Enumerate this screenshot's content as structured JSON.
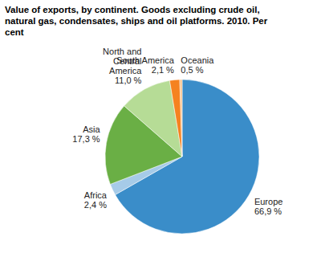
{
  "chart_data": {
    "type": "pie",
    "title": "Value of exports, by continent. Goods excluding crude oil, natural gas, condensates, ships and oil platforms. 2010. Per cent",
    "categories": [
      "Europe",
      "Africa",
      "Asia",
      "North and Central America",
      "South America",
      "Oceania"
    ],
    "values": [
      66.9,
      2.4,
      17.3,
      11.0,
      2.1,
      0.5
    ],
    "value_labels": [
      "66,9 %",
      "2,4 %",
      "17,3 %",
      "11,0 %",
      "2,1 %",
      "0,5 %"
    ],
    "colors": [
      "#3a8dc9",
      "#a6cbe8",
      "#6aaf45",
      "#b6dc96",
      "#f58220",
      "#f9c58f"
    ],
    "data_labels": true
  }
}
